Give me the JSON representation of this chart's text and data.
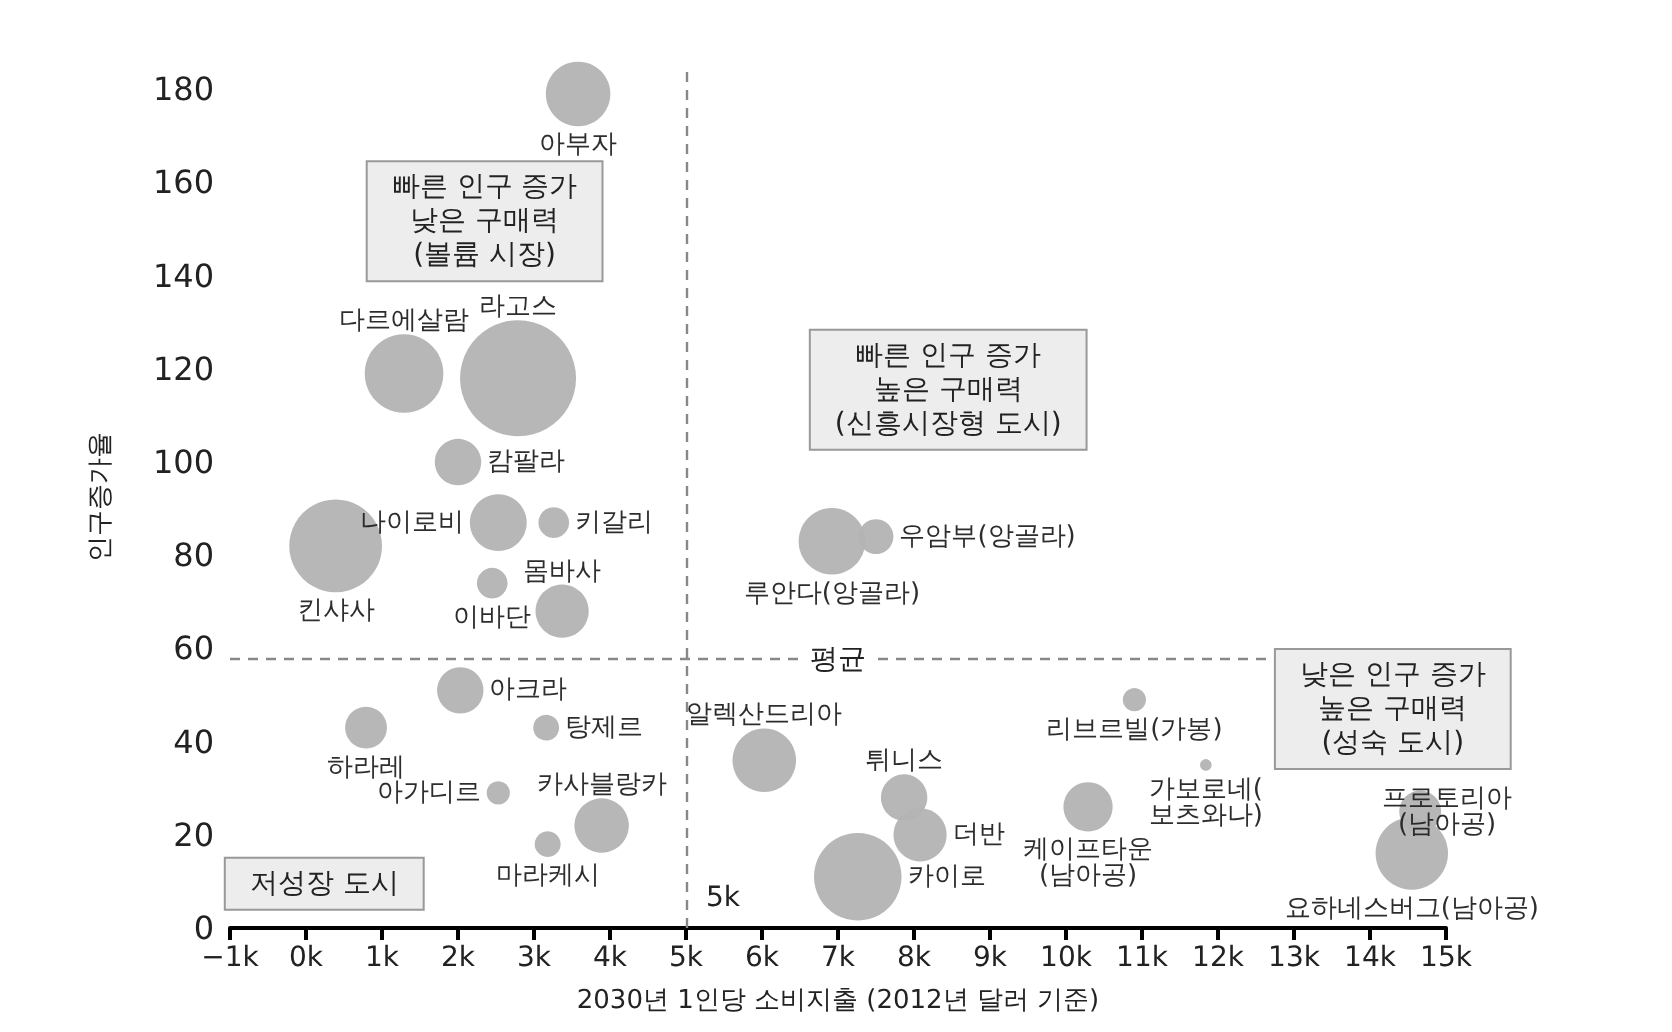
{
  "chart_data": {
    "type": "bubble",
    "xlabel": "2030년 1인당 소비지출 (2012년 달러 기준)",
    "ylabel": "인구증가율",
    "xlim": [
      -1,
      15
    ],
    "ylim": [
      0,
      185
    ],
    "xticks": [
      {
        "value": -1,
        "label": "−1k"
      },
      {
        "value": 0,
        "label": "0k"
      },
      {
        "value": 1,
        "label": "1k"
      },
      {
        "value": 2,
        "label": "2k"
      },
      {
        "value": 3,
        "label": "3k"
      },
      {
        "value": 4,
        "label": "4k"
      },
      {
        "value": 5,
        "label": "5k"
      },
      {
        "value": 6,
        "label": "6k"
      },
      {
        "value": 7,
        "label": "7k"
      },
      {
        "value": 8,
        "label": "8k"
      },
      {
        "value": 9,
        "label": "9k"
      },
      {
        "value": 10,
        "label": "10k"
      },
      {
        "value": 11,
        "label": "11k"
      },
      {
        "value": 12,
        "label": "12k"
      },
      {
        "value": 13,
        "label": "13k"
      },
      {
        "value": 14,
        "label": "14k"
      },
      {
        "value": 15,
        "label": "15k"
      }
    ],
    "yticks": [
      0,
      20,
      40,
      60,
      80,
      100,
      120,
      140,
      160,
      180
    ],
    "grid": false,
    "legend": false,
    "ref_lines": [
      {
        "axis": "x",
        "value": 5,
        "label": "5k",
        "color": "#888888",
        "line_style": "dashed"
      },
      {
        "axis": "y",
        "value": 58,
        "label": "평균",
        "color": "#888888",
        "line_style": "dashed"
      }
    ],
    "annotations": [
      "빠른 인구 증가\n낮은 구매력\n(볼륨 시장)",
      "빠른 인구 증가\n높은 구매력\n(신흥시장형 도시)",
      "낮은 인구 증가\n높은 구매력\n(성숙 도시)",
      "저성장 도시"
    ],
    "series": [
      {
        "name": "아부자",
        "color": "#b3b3b3",
        "x": [
          3.58
        ],
        "values": [
          179
        ],
        "sizes": [
          0.31
        ]
      },
      {
        "name": "다르에살람",
        "color": "#b3b3b3",
        "x": [
          1.29
        ],
        "values": [
          119
        ],
        "sizes": [
          0.46
        ]
      },
      {
        "name": "라고스",
        "color": "#b3b3b3",
        "x": [
          2.79
        ],
        "values": [
          118
        ],
        "sizes": [
          1
        ]
      },
      {
        "name": "캄팔라",
        "color": "#b3b3b3",
        "x": [
          2.0
        ],
        "values": [
          100
        ],
        "sizes": [
          0.16
        ]
      },
      {
        "name": "나이로비",
        "color": "#b3b3b3",
        "x": [
          2.53
        ],
        "values": [
          87
        ],
        "sizes": [
          0.24
        ]
      },
      {
        "name": "키갈리",
        "color": "#b3b3b3",
        "x": [
          3.26
        ],
        "values": [
          87
        ],
        "sizes": [
          0.07
        ]
      },
      {
        "name": "킨샤사",
        "color": "#b3b3b3",
        "x": [
          0.39
        ],
        "values": [
          82
        ],
        "sizes": [
          0.64
        ]
      },
      {
        "name": "이바단",
        "color": "#b3b3b3",
        "x": [
          2.45
        ],
        "values": [
          74
        ],
        "sizes": [
          0.07
        ]
      },
      {
        "name": "몸바사",
        "color": "#b3b3b3",
        "x": [
          3.37
        ],
        "values": [
          68
        ],
        "sizes": [
          0.21
        ]
      },
      {
        "name": "아크라",
        "color": "#b3b3b3",
        "x": [
          2.03
        ],
        "values": [
          51
        ],
        "sizes": [
          0.16
        ]
      },
      {
        "name": "탕제르",
        "color": "#b3b3b3",
        "x": [
          3.16
        ],
        "values": [
          43
        ],
        "sizes": [
          0.05
        ]
      },
      {
        "name": "하라레",
        "color": "#b3b3b3",
        "x": [
          0.79
        ],
        "values": [
          43
        ],
        "sizes": [
          0.13
        ]
      },
      {
        "name": "아가디르",
        "color": "#b3b3b3",
        "x": [
          2.53
        ],
        "values": [
          29
        ],
        "sizes": [
          0.04
        ]
      },
      {
        "name": "카사블랑카",
        "color": "#b3b3b3",
        "x": [
          3.89
        ],
        "values": [
          22
        ],
        "sizes": [
          0.22
        ]
      },
      {
        "name": "마라케시",
        "color": "#b3b3b3",
        "x": [
          3.18
        ],
        "values": [
          18
        ],
        "sizes": [
          0.05
        ]
      },
      {
        "name": "루안다(앙골라)",
        "color": "#b3b3b3",
        "x": [
          6.92
        ],
        "values": [
          83
        ],
        "sizes": [
          0.33
        ]
      },
      {
        "name": "우암부(앙골라)",
        "color": "#b3b3b3",
        "x": [
          7.5
        ],
        "values": [
          84
        ],
        "sizes": [
          0.09
        ]
      },
      {
        "name": "알렉산드리아",
        "color": "#b3b3b3",
        "x": [
          6.03
        ],
        "values": [
          36
        ],
        "sizes": [
          0.3
        ]
      },
      {
        "name": "튀니스",
        "color": "#b3b3b3",
        "x": [
          7.87
        ],
        "values": [
          28
        ],
        "sizes": [
          0.16
        ]
      },
      {
        "name": "더반",
        "color": "#b3b3b3",
        "x": [
          8.08
        ],
        "values": [
          20
        ],
        "sizes": [
          0.21
        ]
      },
      {
        "name": "카이로",
        "color": "#b3b3b3",
        "x": [
          7.26
        ],
        "values": [
          11
        ],
        "sizes": [
          0.57
        ]
      },
      {
        "name": "케이프타운(남아공)",
        "color": "#b3b3b3",
        "x": [
          10.29
        ],
        "values": [
          26
        ],
        "sizes": [
          0.18
        ]
      },
      {
        "name": "리브르빌(가봉)",
        "color": "#b3b3b3",
        "x": [
          10.9
        ],
        "values": [
          49
        ],
        "sizes": [
          0.04
        ]
      },
      {
        "name": "가보로네(보츠와나)",
        "color": "#b3b3b3",
        "x": [
          11.84
        ],
        "values": [
          35
        ],
        "sizes": [
          0.01
        ]
      },
      {
        "name": "요하네스버그(남아공)",
        "color": "#b3b3b3",
        "x": [
          14.55
        ],
        "values": [
          16
        ],
        "sizes": [
          0.39
        ]
      },
      {
        "name": "프로토리아(남아공)",
        "color": "#b3b3b3",
        "x": [
          14.66
        ],
        "values": [
          25
        ],
        "sizes": [
          0.13
        ]
      }
    ]
  }
}
